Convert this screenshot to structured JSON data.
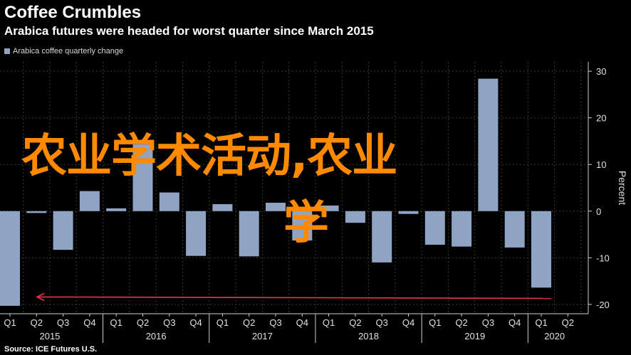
{
  "chart_data": {
    "type": "bar",
    "title": "Coffee Crumbles",
    "subtitle": "Arabica futures were headed for worst quarter since March 2015",
    "legend": "Arabica coffee quarterly change",
    "ylabel": "Percent",
    "ylim": [
      -22,
      32
    ],
    "yticks": [
      30,
      20,
      10,
      0,
      -10,
      -20
    ],
    "ytick_labels": [
      "30",
      "20",
      "10",
      "0",
      "-10",
      "-20"
    ],
    "categories": [
      "Q1",
      "Q2",
      "Q3",
      "Q4",
      "Q1",
      "Q2",
      "Q3",
      "Q4",
      "Q1",
      "Q2",
      "Q3",
      "Q4",
      "Q1",
      "Q2",
      "Q3",
      "Q4",
      "Q1",
      "Q2",
      "Q3",
      "Q4",
      "Q1",
      "Q2"
    ],
    "years": [
      {
        "label": "2015",
        "start": 0,
        "end": 3
      },
      {
        "label": "2016",
        "start": 4,
        "end": 7
      },
      {
        "label": "2017",
        "start": 8,
        "end": 11
      },
      {
        "label": "2018",
        "start": 12,
        "end": 15
      },
      {
        "label": "2019",
        "start": 16,
        "end": 19
      },
      {
        "label": "2020",
        "start": 20,
        "end": 21
      }
    ],
    "values": [
      -20.3,
      -0.4,
      -8.3,
      4.3,
      0.6,
      14.3,
      4.0,
      -9.6,
      1.5,
      -9.7,
      1.8,
      -6.3,
      1.2,
      -2.5,
      -11.0,
      -0.6,
      -7.2,
      -7.6,
      28.4,
      -7.8,
      -16.4,
      0
    ],
    "bar_color": "#8fa4c4",
    "arrow_color": "#e8344a",
    "arrow_value": -18.4,
    "grid": true
  },
  "overlay": {
    "line1": "农业学术活动,农业",
    "line2": "学"
  },
  "source": "Source: ICE Futures U.S."
}
